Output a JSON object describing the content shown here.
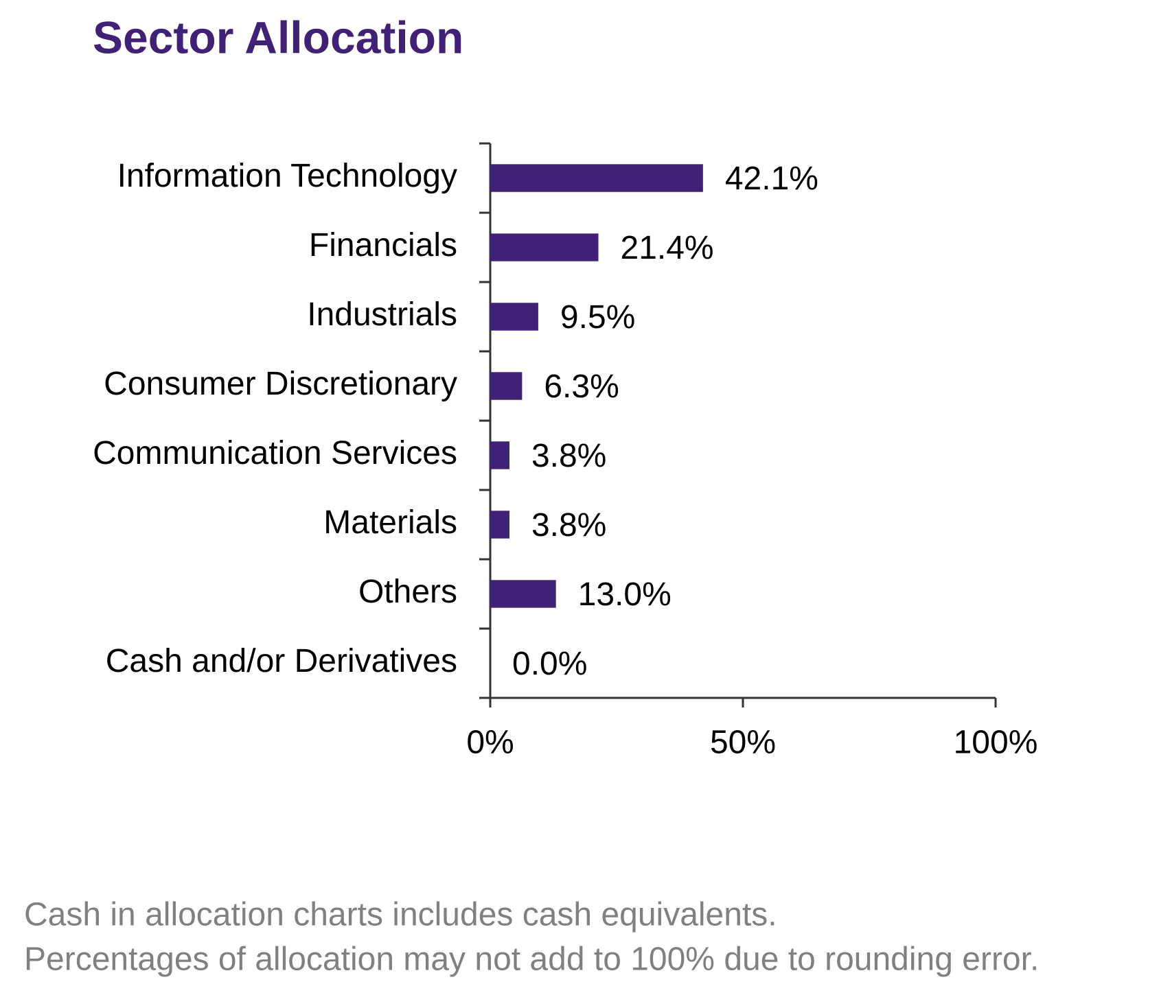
{
  "chart_data": {
    "type": "hbar",
    "title": "Sector Allocation",
    "categories": [
      "Information Technology",
      "Financials",
      "Industrials",
      "Consumer Discretionary",
      "Communication Services",
      "Materials",
      "Others",
      "Cash and/or Derivatives"
    ],
    "values": [
      42.1,
      21.4,
      9.5,
      6.3,
      3.8,
      3.8,
      13.0,
      0.0
    ],
    "value_labels": [
      "42.1%",
      "21.4%",
      "9.5%",
      "6.3%",
      "3.8%",
      "3.8%",
      "13.0%",
      "0.0%"
    ],
    "color": "#3f2178",
    "xlim": [
      0,
      100
    ],
    "xticks": [
      {
        "value": 0,
        "label": "0%"
      },
      {
        "value": 50,
        "label": "50%"
      },
      {
        "value": 100,
        "label": "100%"
      }
    ],
    "grid": false,
    "notes": [
      "Cash in allocation charts includes cash equivalents.",
      "Percentages of allocation may not add to 100% due to rounding error."
    ]
  }
}
